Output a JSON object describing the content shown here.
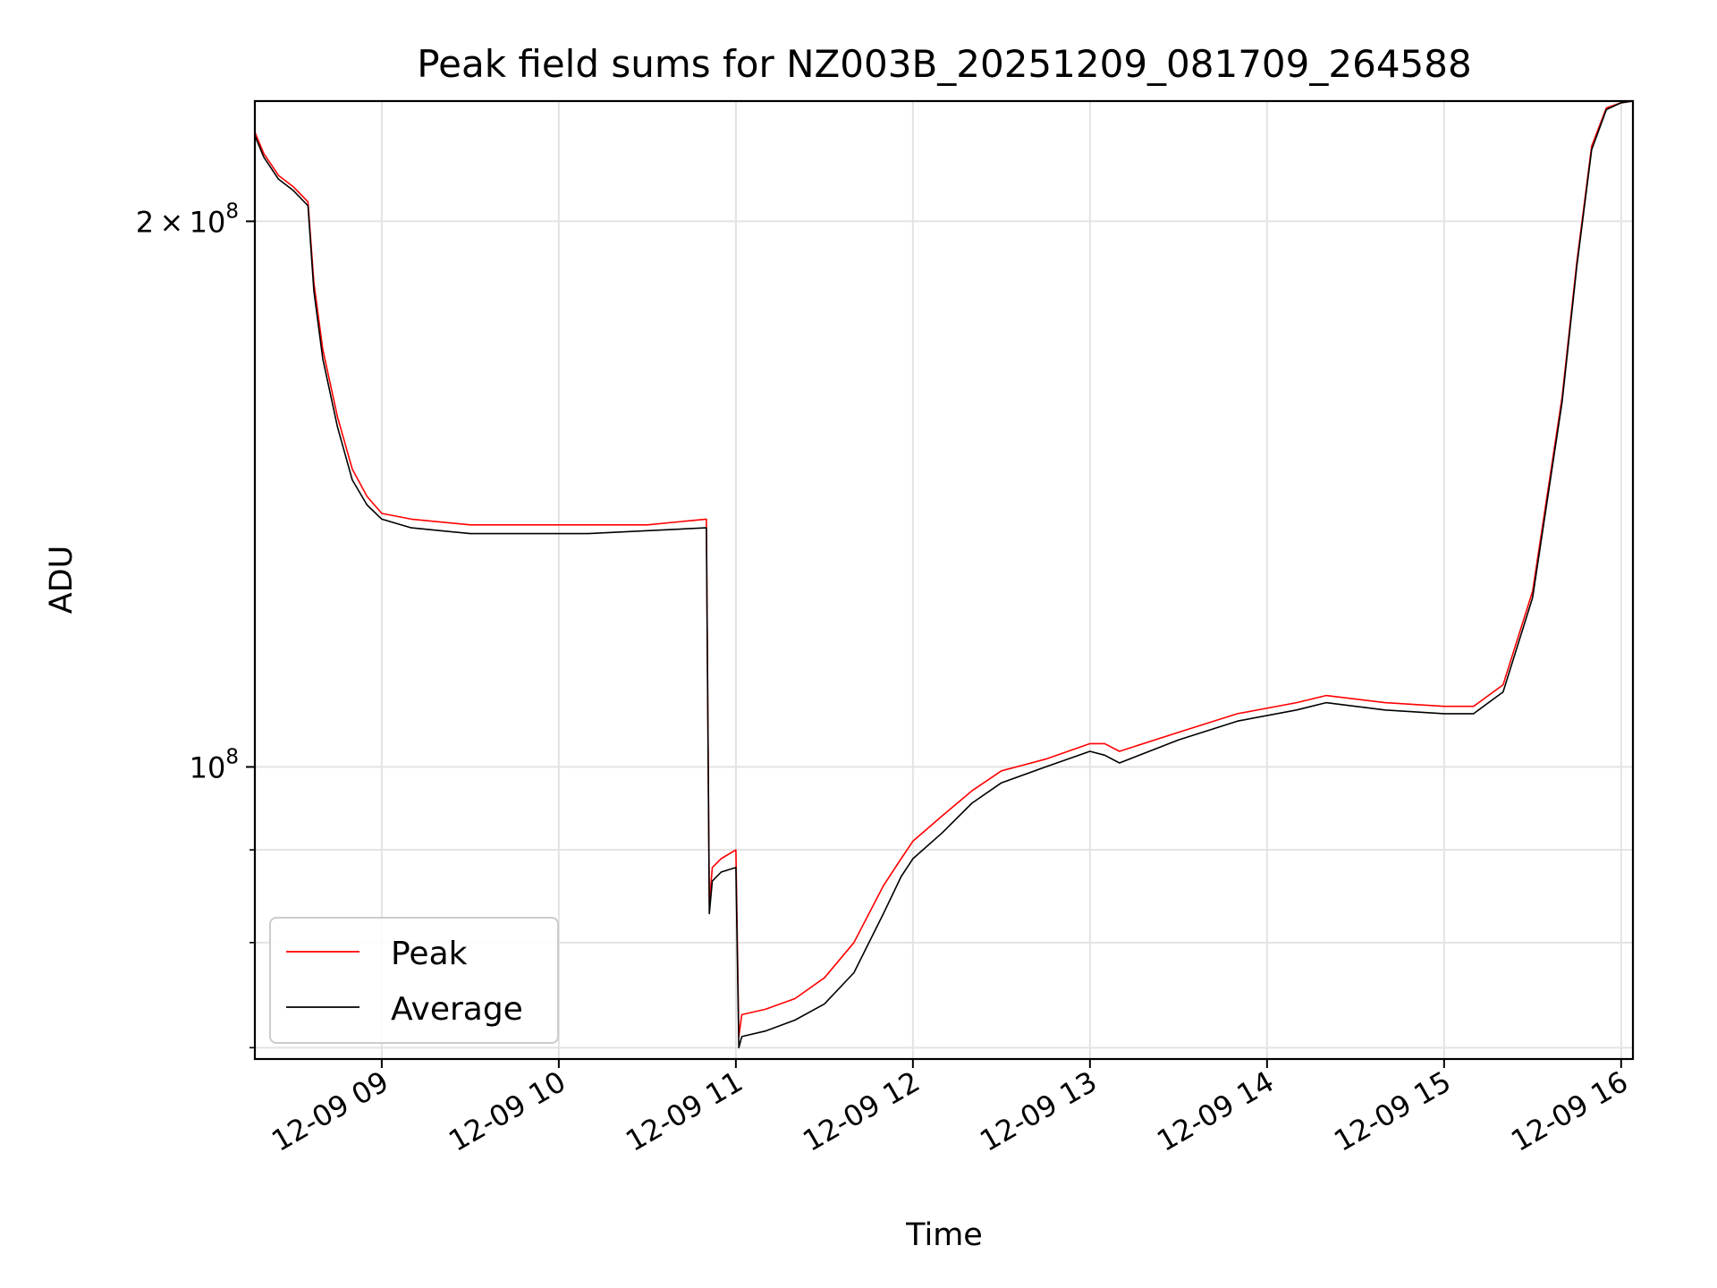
{
  "chart_data": {
    "type": "line",
    "title": "Peak field sums for NZ003B_20251209_081709_264588",
    "xlabel": "Time",
    "ylabel": "ADU",
    "yscale": "log",
    "grid": true,
    "legend_position": "lower-left",
    "xlim": [
      "2025-12-09 08:17",
      "2025-12-09 16:04"
    ],
    "ylim": [
      69000000,
      233000000
    ],
    "x_ticks": [
      "12-09 09",
      "12-09 10",
      "12-09 11",
      "12-09 12",
      "12-09 13",
      "12-09 14",
      "12-09 15",
      "12-09 16"
    ],
    "y_ticks": [
      {
        "value": 100000000,
        "base": "10",
        "exp": "8",
        "mantissa": ""
      },
      {
        "value": 200000000,
        "base": "10",
        "exp": "8",
        "mantissa": "2"
      }
    ],
    "y_minor_ticks": [
      70000000,
      80000000,
      90000000
    ],
    "series": [
      {
        "name": "Peak",
        "color": "#ff0000",
        "x": [
          "08:17",
          "08:20",
          "08:25",
          "08:30",
          "08:35",
          "08:37",
          "08:40",
          "08:45",
          "08:50",
          "08:55",
          "09:00",
          "09:10",
          "09:30",
          "09:50",
          "10:10",
          "10:30",
          "10:50",
          "10:51",
          "10:52",
          "10:55",
          "11:00",
          "11:01",
          "11:02",
          "11:10",
          "11:20",
          "11:30",
          "11:40",
          "11:50",
          "11:56",
          "12:00",
          "12:10",
          "12:20",
          "12:30",
          "12:45",
          "13:00",
          "13:05",
          "13:10",
          "13:30",
          "13:50",
          "14:10",
          "14:20",
          "14:30",
          "14:40",
          "15:00",
          "15:10",
          "15:20",
          "15:30",
          "15:40",
          "15:45",
          "15:50",
          "15:55",
          "16:00",
          "16:04"
        ],
        "y": [
          224000000,
          218000000,
          212000000,
          209000000,
          205000000,
          185000000,
          170000000,
          156000000,
          146000000,
          141000000,
          138000000,
          137000000,
          136000000,
          136000000,
          136000000,
          136000000,
          137000000,
          84000000,
          88000000,
          89000000,
          90000000,
          71000000,
          73000000,
          73500000,
          74500000,
          76500000,
          80000000,
          86000000,
          89000000,
          91000000,
          94000000,
          97000000,
          99500000,
          101000000,
          103000000,
          103000000,
          102000000,
          104500000,
          107000000,
          108500000,
          109500000,
          109000000,
          108500000,
          108000000,
          108000000,
          111000000,
          125000000,
          160000000,
          190000000,
          220000000,
          231000000,
          232500000,
          233000000
        ]
      },
      {
        "name": "Average",
        "color": "#000000",
        "x": [
          "08:17",
          "08:20",
          "08:25",
          "08:30",
          "08:35",
          "08:37",
          "08:40",
          "08:45",
          "08:50",
          "08:55",
          "09:00",
          "09:10",
          "09:30",
          "09:50",
          "10:10",
          "10:30",
          "10:50",
          "10:51",
          "10:52",
          "10:55",
          "11:00",
          "11:01",
          "11:02",
          "11:10",
          "11:20",
          "11:30",
          "11:40",
          "11:50",
          "11:56",
          "12:00",
          "12:10",
          "12:20",
          "12:30",
          "12:45",
          "13:00",
          "13:05",
          "13:10",
          "13:30",
          "13:50",
          "14:10",
          "14:20",
          "14:30",
          "14:40",
          "15:00",
          "15:10",
          "15:20",
          "15:30",
          "15:40",
          "15:45",
          "15:50",
          "15:55",
          "16:00",
          "16:04"
        ],
        "y": [
          223000000,
          217000000,
          211000000,
          208000000,
          204000000,
          183000000,
          168000000,
          154000000,
          144000000,
          139500000,
          137000000,
          135500000,
          134500000,
          134500000,
          134500000,
          135000000,
          135500000,
          83000000,
          86500000,
          87500000,
          88000000,
          70000000,
          71000000,
          71500000,
          72500000,
          74000000,
          77000000,
          83000000,
          87000000,
          89000000,
          92000000,
          95500000,
          98000000,
          100000000,
          102000000,
          101500000,
          100500000,
          103500000,
          106000000,
          107500000,
          108500000,
          108000000,
          107500000,
          107000000,
          107000000,
          110000000,
          124000000,
          159000000,
          189000000,
          219000000,
          230500000,
          232500000,
          233000000
        ]
      }
    ]
  }
}
